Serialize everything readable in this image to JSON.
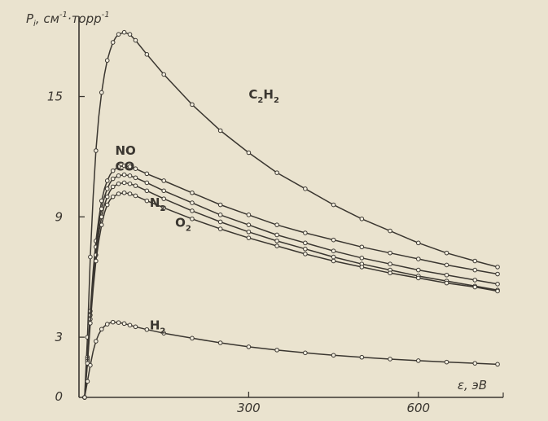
{
  "chart_data": {
    "type": "line",
    "title": "",
    "ylabel": "Pi, см-1·торр-1",
    "ylabel_parts": {
      "main": "P",
      "sub": "i",
      "rest": ", см",
      "sup1": "-1",
      "mid": "·торр",
      "sup2": "-1"
    },
    "xlabel": "ε, эВ",
    "xlim": [
      0,
      750
    ],
    "ylim": [
      0,
      19
    ],
    "xticks": [
      0,
      300,
      600
    ],
    "yticks": [
      3,
      9,
      15
    ],
    "x_tick_labels": [
      "300",
      "600"
    ],
    "y_tick_labels": [
      "0",
      "3",
      "9",
      "15"
    ],
    "marker": "open-circle",
    "colors": {
      "background": "#eae3cf",
      "ink": "#3a3630",
      "marker_fill": "#f4efe0"
    },
    "series": [
      {
        "name": "C2H2",
        "label_parts": [
          "C",
          "2",
          "H",
          "2"
        ],
        "points": [
          [
            10,
            0.0
          ],
          [
            15,
            3.0
          ],
          [
            20,
            7.0
          ],
          [
            25,
            10.0
          ],
          [
            30,
            12.3
          ],
          [
            35,
            14.0
          ],
          [
            40,
            15.2
          ],
          [
            45,
            16.1
          ],
          [
            50,
            16.8
          ],
          [
            55,
            17.3
          ],
          [
            60,
            17.7
          ],
          [
            65,
            17.95
          ],
          [
            70,
            18.1
          ],
          [
            80,
            18.2
          ],
          [
            90,
            18.1
          ],
          [
            100,
            17.8
          ],
          [
            120,
            17.1
          ],
          [
            150,
            16.1
          ],
          [
            200,
            14.6
          ],
          [
            250,
            13.3
          ],
          [
            300,
            12.2
          ],
          [
            350,
            11.2
          ],
          [
            400,
            10.4
          ],
          [
            450,
            9.6
          ],
          [
            500,
            8.9
          ],
          [
            550,
            8.3
          ],
          [
            600,
            7.7
          ],
          [
            650,
            7.2
          ],
          [
            700,
            6.8
          ],
          [
            740,
            6.5
          ]
        ],
        "label_at": [
          300,
          14.9
        ]
      },
      {
        "name": "NO",
        "label_parts": [
          "N",
          "",
          "O",
          ""
        ],
        "points": [
          [
            10,
            0.0
          ],
          [
            15,
            2.0
          ],
          [
            20,
            4.3
          ],
          [
            25,
            6.3
          ],
          [
            30,
            7.8
          ],
          [
            35,
            8.9
          ],
          [
            40,
            9.8
          ],
          [
            45,
            10.4
          ],
          [
            50,
            10.8
          ],
          [
            55,
            11.1
          ],
          [
            60,
            11.3
          ],
          [
            70,
            11.5
          ],
          [
            80,
            11.55
          ],
          [
            90,
            11.5
          ],
          [
            100,
            11.4
          ],
          [
            120,
            11.15
          ],
          [
            150,
            10.8
          ],
          [
            200,
            10.2
          ],
          [
            250,
            9.6
          ],
          [
            300,
            9.1
          ],
          [
            350,
            8.6
          ],
          [
            400,
            8.2
          ],
          [
            450,
            7.85
          ],
          [
            500,
            7.5
          ],
          [
            550,
            7.2
          ],
          [
            600,
            6.9
          ],
          [
            650,
            6.6
          ],
          [
            700,
            6.35
          ],
          [
            740,
            6.15
          ]
        ],
        "label_at": [
          64,
          12.1
        ]
      },
      {
        "name": "CO",
        "label_parts": [
          "C",
          "",
          "O",
          ""
        ],
        "points": [
          [
            10,
            0.0
          ],
          [
            15,
            1.9
          ],
          [
            20,
            4.1
          ],
          [
            25,
            6.0
          ],
          [
            30,
            7.5
          ],
          [
            35,
            8.6
          ],
          [
            40,
            9.4
          ],
          [
            45,
            10.0
          ],
          [
            50,
            10.4
          ],
          [
            55,
            10.7
          ],
          [
            60,
            10.9
          ],
          [
            70,
            11.05
          ],
          [
            80,
            11.1
          ],
          [
            90,
            11.05
          ],
          [
            100,
            10.95
          ],
          [
            120,
            10.7
          ],
          [
            150,
            10.3
          ],
          [
            200,
            9.7
          ],
          [
            250,
            9.1
          ],
          [
            300,
            8.6
          ],
          [
            350,
            8.1
          ],
          [
            400,
            7.7
          ],
          [
            450,
            7.3
          ],
          [
            500,
            6.95
          ],
          [
            550,
            6.65
          ],
          [
            600,
            6.35
          ],
          [
            650,
            6.1
          ],
          [
            700,
            5.85
          ],
          [
            740,
            5.65
          ]
        ],
        "label_at": [
          64,
          11.3
        ]
      },
      {
        "name": "N2",
        "label_parts": [
          "N",
          "2",
          "",
          ""
        ],
        "points": [
          [
            10,
            0.0
          ],
          [
            15,
            1.8
          ],
          [
            20,
            3.9
          ],
          [
            25,
            5.7
          ],
          [
            30,
            7.1
          ],
          [
            35,
            8.2
          ],
          [
            40,
            9.0
          ],
          [
            45,
            9.6
          ],
          [
            50,
            10.0
          ],
          [
            55,
            10.3
          ],
          [
            60,
            10.5
          ],
          [
            70,
            10.65
          ],
          [
            80,
            10.7
          ],
          [
            90,
            10.65
          ],
          [
            100,
            10.55
          ],
          [
            120,
            10.3
          ],
          [
            150,
            9.9
          ],
          [
            200,
            9.3
          ],
          [
            250,
            8.75
          ],
          [
            300,
            8.25
          ],
          [
            350,
            7.8
          ],
          [
            400,
            7.4
          ],
          [
            450,
            7.0
          ],
          [
            500,
            6.65
          ],
          [
            550,
            6.35
          ],
          [
            600,
            6.05
          ],
          [
            650,
            5.8
          ],
          [
            700,
            5.55
          ],
          [
            740,
            5.35
          ]
        ],
        "label_at": [
          125,
          9.5
        ]
      },
      {
        "name": "O2",
        "label_parts": [
          "O",
          "2",
          "",
          ""
        ],
        "points": [
          [
            10,
            0.0
          ],
          [
            15,
            1.7
          ],
          [
            20,
            3.7
          ],
          [
            25,
            5.4
          ],
          [
            30,
            6.8
          ],
          [
            35,
            7.8
          ],
          [
            40,
            8.6
          ],
          [
            45,
            9.2
          ],
          [
            50,
            9.6
          ],
          [
            55,
            9.85
          ],
          [
            60,
            10.0
          ],
          [
            70,
            10.15
          ],
          [
            80,
            10.2
          ],
          [
            90,
            10.15
          ],
          [
            100,
            10.05
          ],
          [
            120,
            9.8
          ],
          [
            150,
            9.45
          ],
          [
            200,
            8.9
          ],
          [
            250,
            8.4
          ],
          [
            300,
            7.95
          ],
          [
            350,
            7.55
          ],
          [
            400,
            7.15
          ],
          [
            450,
            6.8
          ],
          [
            500,
            6.5
          ],
          [
            550,
            6.2
          ],
          [
            600,
            5.95
          ],
          [
            650,
            5.7
          ],
          [
            700,
            5.5
          ],
          [
            740,
            5.3
          ]
        ],
        "label_at": [
          170,
          8.5
        ]
      },
      {
        "name": "H2",
        "label_parts": [
          "H",
          "2",
          "",
          ""
        ],
        "points": [
          [
            10,
            0.0
          ],
          [
            15,
            0.8
          ],
          [
            20,
            1.6
          ],
          [
            25,
            2.3
          ],
          [
            30,
            2.8
          ],
          [
            35,
            3.15
          ],
          [
            40,
            3.4
          ],
          [
            45,
            3.55
          ],
          [
            50,
            3.65
          ],
          [
            55,
            3.72
          ],
          [
            60,
            3.75
          ],
          [
            70,
            3.73
          ],
          [
            80,
            3.68
          ],
          [
            90,
            3.6
          ],
          [
            100,
            3.52
          ],
          [
            120,
            3.38
          ],
          [
            150,
            3.2
          ],
          [
            200,
            2.95
          ],
          [
            250,
            2.72
          ],
          [
            300,
            2.52
          ],
          [
            350,
            2.36
          ],
          [
            400,
            2.22
          ],
          [
            450,
            2.1
          ],
          [
            500,
            2.0
          ],
          [
            550,
            1.91
          ],
          [
            600,
            1.83
          ],
          [
            650,
            1.76
          ],
          [
            700,
            1.7
          ],
          [
            740,
            1.65
          ]
        ],
        "label_at": [
          125,
          3.4
        ]
      }
    ]
  }
}
